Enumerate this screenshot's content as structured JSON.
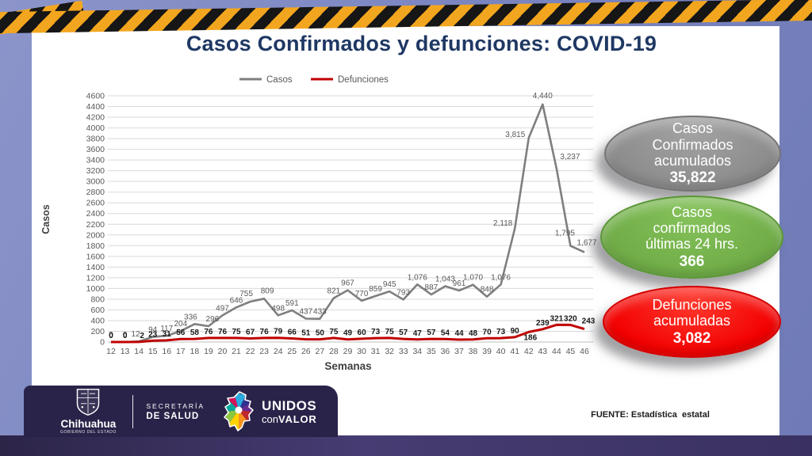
{
  "title": "Casos Confirmados y defunciones: COVID-19",
  "chart_data": {
    "type": "line",
    "title": "",
    "xlabel": "Semanas",
    "ylabel": "Casos",
    "x": [
      12,
      13,
      14,
      15,
      16,
      17,
      18,
      19,
      20,
      21,
      22,
      23,
      24,
      25,
      26,
      27,
      28,
      29,
      30,
      31,
      32,
      33,
      34,
      35,
      36,
      37,
      38,
      39,
      40,
      41,
      42,
      43,
      44,
      45,
      46
    ],
    "ylim": [
      0,
      4600
    ],
    "y_tick_step": 200,
    "grid": true,
    "legend_position": "top",
    "series": [
      {
        "name": "Casos",
        "color": "#7F7F7F",
        "values": [
          0,
          0,
          12,
          94,
          117,
          204,
          336,
          296,
          497,
          646,
          755,
          809,
          498,
          591,
          437,
          433,
          821,
          967,
          770,
          859,
          945,
          793,
          1076,
          887,
          1043,
          961,
          1070,
          848,
          1076,
          2118,
          3815,
          4440,
          3237,
          1795,
          1677
        ],
        "labels": [
          "0",
          "0",
          "12",
          "94",
          "117",
          "204",
          "336",
          "296",
          "497",
          "646",
          "755",
          "809",
          "498",
          "591",
          "437",
          "433",
          "821",
          "967",
          "770",
          "859",
          "945",
          "793",
          "1,076",
          "887",
          "1,043",
          "961",
          "1,070",
          "848",
          "1,076",
          "2,118",
          "3,815",
          "4,440",
          "3,237",
          "1,795",
          "1,677"
        ]
      },
      {
        "name": "Defunciones",
        "color": "#C00000",
        "values": [
          0,
          0,
          2,
          23,
          31,
          56,
          58,
          76,
          76,
          75,
          67,
          76,
          79,
          66,
          51,
          50,
          75,
          49,
          60,
          73,
          75,
          57,
          47,
          57,
          54,
          44,
          48,
          70,
          73,
          90,
          186,
          239,
          321,
          320,
          243
        ],
        "labels": [
          "0",
          "0",
          "2",
          "23",
          "31",
          "56",
          "58",
          "76",
          "76",
          "75",
          "67",
          "76",
          "79",
          "66",
          "51",
          "50",
          "75",
          "49",
          "60",
          "73",
          "75",
          "57",
          "47",
          "57",
          "54",
          "44",
          "48",
          "70",
          "73",
          "90",
          "186",
          "239",
          "321",
          "320",
          "243"
        ]
      }
    ]
  },
  "badges": [
    {
      "id": "casos-confirmados-acumulados",
      "lines": [
        "Casos",
        "Confirmados",
        "acumulados"
      ],
      "value": "35,822",
      "fill": "#8C8C8C",
      "fill_light": "#A2A2A2",
      "border": "#747474"
    },
    {
      "id": "casos-confirmados-24hrs",
      "lines": [
        "Casos",
        "confirmados",
        "últimas 24 hrs."
      ],
      "value": "366",
      "fill": "#70AD47",
      "fill_light": "#85C25B",
      "border": "#5B9638"
    },
    {
      "id": "defunciones-acumuladas",
      "lines": [
        "Defunciones",
        "acumuladas"
      ],
      "value": "3,082",
      "fill": "#F20000",
      "fill_light": "#FF3A2E",
      "border": "#D40000"
    }
  ],
  "footer": {
    "gov_name": "Chihuahua",
    "gov_sub": "GOBIERNO DEL ESTADO",
    "secretaria_line1": "SECRETARÍA",
    "secretaria_line2": "DE SALUD",
    "brand_line1": "UNIDOS",
    "brand_con": "con",
    "brand_valor": "VALOR",
    "source": "FUENTE: Estadística  estatal"
  },
  "colors": {
    "title_blue": "#1F3864",
    "background_periwinkle": "#7B86C1",
    "hazard_yellow": "#F2A51E",
    "hazard_black": "#161616",
    "casos_line": "#7F7F7F",
    "defunciones_line": "#C00000",
    "footer_navy": "#2A2349",
    "gridline": "#D9D9D9",
    "axis_text": "#595959"
  }
}
